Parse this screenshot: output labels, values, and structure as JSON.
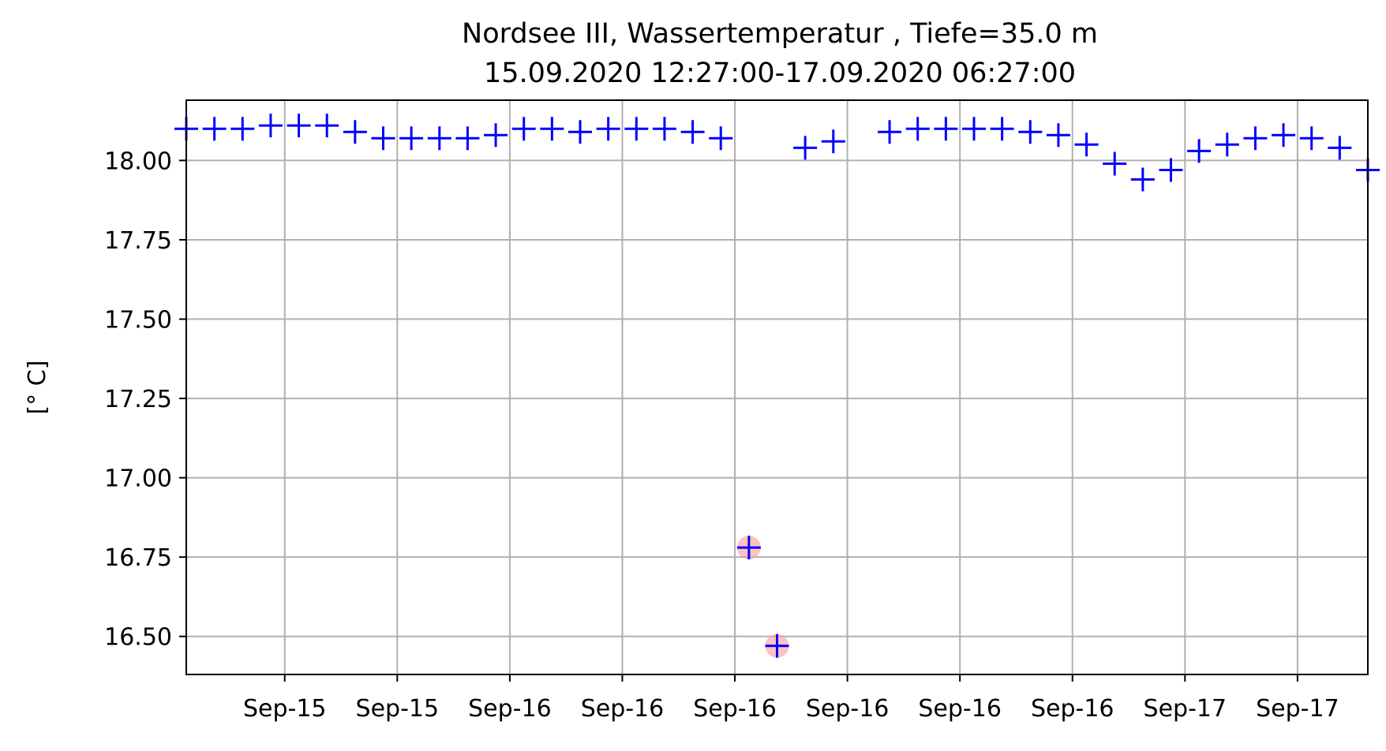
{
  "chart_data": {
    "type": "scatter",
    "title": "Nordsee III, Wassertemperatur , Tiefe=35.0 m",
    "subtitle": "15.09.2020 12:27:00-17.09.2020 06:27:00",
    "xlabel": "",
    "ylabel": "[° C]",
    "ylim": [
      16.38,
      18.19
    ],
    "y_ticks": [
      "16.50",
      "16.75",
      "17.00",
      "17.25",
      "17.50",
      "17.75",
      "18.00"
    ],
    "y_tick_values": [
      16.5,
      16.75,
      17.0,
      17.25,
      17.5,
      17.75,
      18.0
    ],
    "x_range_hours": [
      0,
      42
    ],
    "x_ticks": [
      "Sep-15",
      "Sep-15",
      "Sep-16",
      "Sep-16",
      "Sep-16",
      "Sep-16",
      "Sep-16",
      "Sep-16",
      "Sep-17",
      "Sep-17"
    ],
    "x_tick_hours": [
      3.5,
      7.5,
      11.5,
      15.5,
      19.5,
      23.5,
      27.5,
      31.5,
      35.5,
      39.5
    ],
    "grid": true,
    "marker": "+",
    "colors": {
      "series": "#0000ff",
      "flagged": "#ff9999",
      "grid": "#b0b0b0"
    },
    "series": [
      {
        "x": [
          0,
          1,
          2,
          3,
          4,
          5,
          6,
          7,
          8,
          9,
          10,
          11,
          12,
          13,
          14,
          15,
          16,
          17,
          18,
          19,
          20,
          21,
          22,
          23,
          25,
          26,
          27,
          28,
          29,
          30,
          31,
          32,
          33,
          34,
          35,
          36,
          37,
          38,
          39,
          40,
          41,
          42
        ],
        "y": [
          18.1,
          18.1,
          18.1,
          18.11,
          18.11,
          18.11,
          18.09,
          18.07,
          18.07,
          18.07,
          18.07,
          18.08,
          18.1,
          18.1,
          18.09,
          18.1,
          18.1,
          18.1,
          18.09,
          18.07,
          16.78,
          16.47,
          18.04,
          18.06,
          18.09,
          18.1,
          18.1,
          18.1,
          18.1,
          18.09,
          18.08,
          18.05,
          17.99,
          17.94,
          17.97,
          18.03,
          18.05,
          18.07,
          18.08,
          18.07,
          18.04,
          17.97
        ]
      }
    ],
    "flagged_points": [
      {
        "x": 20,
        "y": 16.78
      },
      {
        "x": 21,
        "y": 16.47
      }
    ]
  }
}
